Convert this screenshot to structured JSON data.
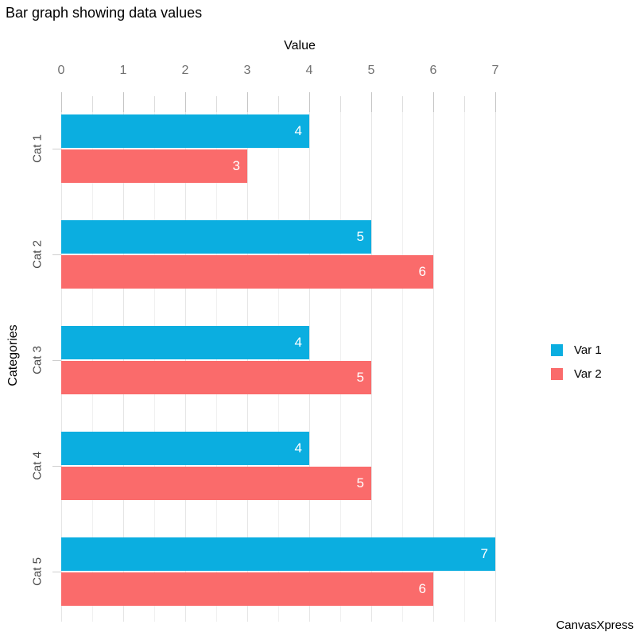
{
  "title": "Bar graph showing data values",
  "watermark": "CanvasXpress",
  "chart_data": {
    "type": "bar",
    "orientation": "horizontal",
    "title": "Bar graph showing data values",
    "xlabel": "Value",
    "ylabel": "Categories",
    "categories": [
      "Cat 1",
      "Cat 2",
      "Cat 3",
      "Cat 4",
      "Cat 5"
    ],
    "series": [
      {
        "name": "Var 1",
        "color": "#0baee0",
        "values": [
          4,
          5,
          4,
          4,
          7
        ]
      },
      {
        "name": "Var 2",
        "color": "#fa6b6b",
        "values": [
          3,
          6,
          5,
          5,
          6
        ]
      }
    ],
    "xlim": [
      0,
      7
    ],
    "xticks": [
      0,
      1,
      2,
      3,
      4,
      5,
      6,
      7
    ],
    "minor_tick_step": 0.5,
    "grid": true,
    "value_labels": true,
    "value_label_color": "#ffffff",
    "legend_position": "right",
    "legend_entries": [
      "Var 1",
      "Var 2"
    ]
  }
}
